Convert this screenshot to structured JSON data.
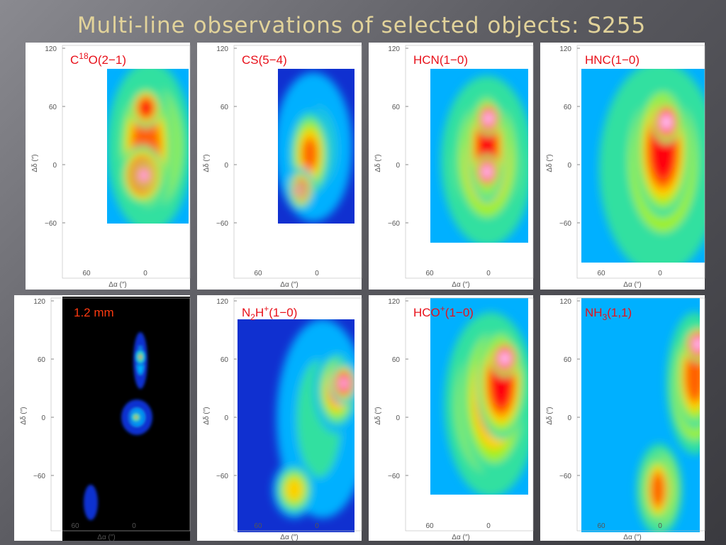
{
  "title": "Multi-line observations of selected objects: S255",
  "panels": [
    {
      "label": [
        {
          "text": "C"
        },
        {
          "text": "18",
          "pos": "sup"
        },
        {
          "text": "O(2−1)"
        }
      ],
      "yticks": [
        "120",
        "60",
        "0",
        "−60"
      ],
      "xticks": [
        "60",
        "0"
      ],
      "ylabel": "Δδ (″)",
      "xlabel": "Δα (″)"
    },
    {
      "label": [
        {
          "text": "CS(5−4)"
        }
      ],
      "yticks": [
        "120",
        "60",
        "0",
        "−60"
      ],
      "xticks": [
        "60",
        "0"
      ],
      "ylabel": "Δδ (″)",
      "xlabel": "Δα (″)"
    },
    {
      "label": [
        {
          "text": "HCN(1−0)"
        }
      ],
      "yticks": [
        "120",
        "60",
        "0",
        "−60"
      ],
      "xticks": [
        "60",
        "0"
      ],
      "ylabel": "Δδ (″)",
      "xlabel": "Δα (″)"
    },
    {
      "label": [
        {
          "text": "HNC(1−0)"
        }
      ],
      "yticks": [
        "120",
        "60",
        "0",
        "−60"
      ],
      "xticks": [
        "60",
        "0"
      ],
      "ylabel": "Δδ (″)",
      "xlabel": "Δα (″)"
    },
    {
      "label": [
        {
          "text": "1.2 mm"
        }
      ],
      "yticks": [
        "120",
        "60",
        "0",
        "−60"
      ],
      "xticks": [
        "60",
        "0"
      ],
      "ylabel": "Δδ (″)",
      "xlabel": "Δα (″)"
    },
    {
      "label": [
        {
          "text": "N"
        },
        {
          "text": "2",
          "pos": "sub"
        },
        {
          "text": "H"
        },
        {
          "text": "+",
          "pos": "sup"
        },
        {
          "text": "(1−0)"
        }
      ],
      "yticks": [
        "120",
        "60",
        "0",
        "−60"
      ],
      "xticks": [
        "60",
        "0"
      ],
      "ylabel": "Δδ (″)",
      "xlabel": "Δα (″)"
    },
    {
      "label": [
        {
          "text": "HCO"
        },
        {
          "text": "+",
          "pos": "sup"
        },
        {
          "text": "(1−0)"
        }
      ],
      "yticks": [
        "120",
        "60",
        "0",
        "−60"
      ],
      "xticks": [
        "60",
        "0"
      ],
      "ylabel": "Δδ (″)",
      "xlabel": "Δα (″)"
    },
    {
      "label": [
        {
          "text": "NH"
        },
        {
          "text": "3",
          "pos": "sub"
        },
        {
          "text": "(1,1)"
        }
      ],
      "yticks": [
        "120",
        "60",
        "0",
        "−60"
      ],
      "xticks": [
        "60",
        "0"
      ],
      "ylabel": "Δδ (″)",
      "xlabel": "Δα (″)"
    }
  ]
}
